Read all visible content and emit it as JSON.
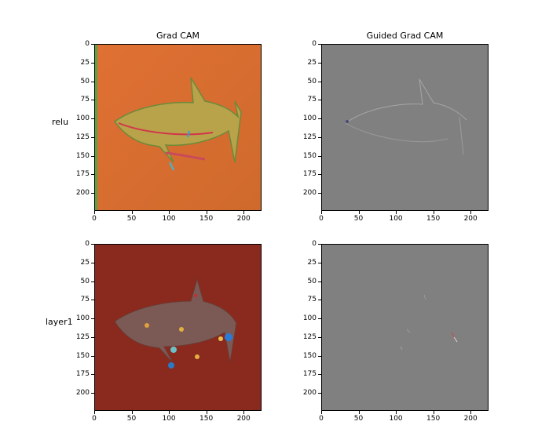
{
  "figure": {
    "col_titles": [
      "Grad CAM",
      "Guided Grad CAM"
    ],
    "row_labels": [
      "relu",
      "layer1"
    ],
    "y_ticks": [
      "0",
      "25",
      "50",
      "75",
      "100",
      "125",
      "150",
      "175",
      "200"
    ],
    "x_ticks": [
      "0",
      "50",
      "100",
      "150",
      "200"
    ]
  },
  "colors": {
    "gradcam_relu_bg": "#d9692f",
    "gradcam_layer1_bg": "#8a2a1e",
    "guided_bg": "#808080"
  }
}
